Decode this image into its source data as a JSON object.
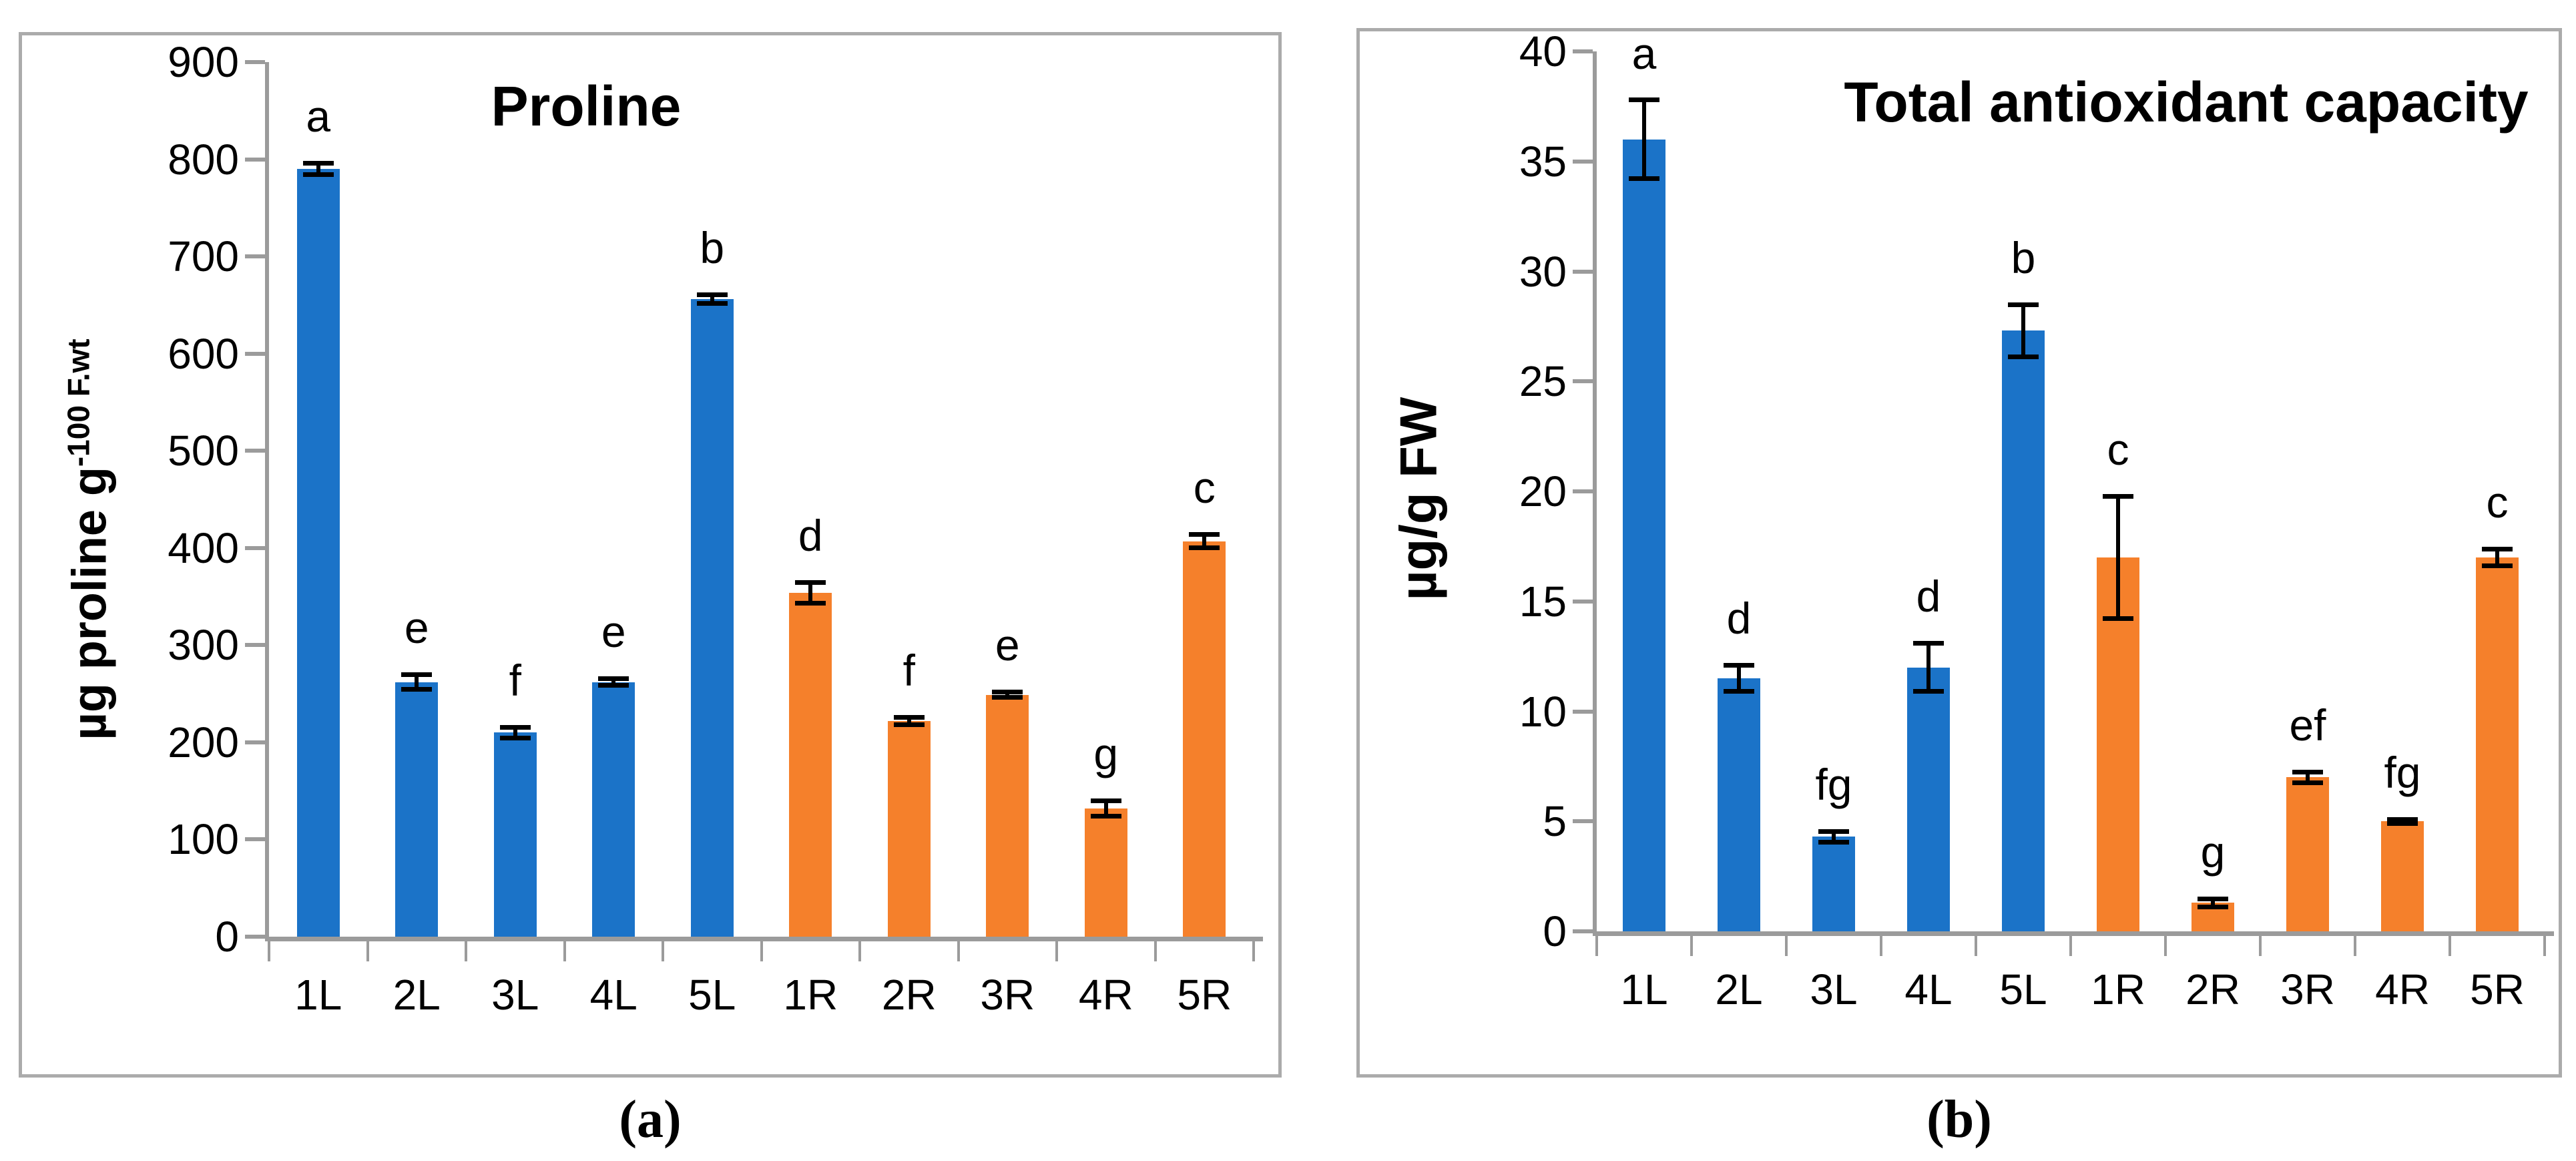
{
  "figure": {
    "captions": [
      "(a)",
      "(b)"
    ]
  },
  "colors": {
    "bar_blue": "#1B73C8",
    "bar_orange": "#F5802B",
    "axis_gray": "#9B9B9B",
    "panel_border": "#ABABAB",
    "error_bar": "#000000"
  },
  "chart_data": [
    {
      "type": "bar",
      "title": "Proline",
      "ylabel": "µg proline g",
      "ylabel_superscript": "-100 F.wt",
      "xlabel": "",
      "ylim": [
        0,
        900
      ],
      "ytick_step": 100,
      "grid": false,
      "legend": "none",
      "categories": [
        "1L",
        "2L",
        "3L",
        "4L",
        "5L",
        "1R",
        "2R",
        "3R",
        "4R",
        "5R"
      ],
      "values": [
        790,
        262,
        210,
        262,
        656,
        354,
        222,
        249,
        132,
        407
      ],
      "errors": [
        6,
        8,
        6,
        4,
        5,
        11,
        4,
        3,
        8,
        7
      ],
      "sig_letters": [
        "a",
        "e",
        "f",
        "e",
        "b",
        "d",
        "f",
        "e",
        "g",
        "c"
      ],
      "bar_color_keys": [
        "bar_blue",
        "bar_blue",
        "bar_blue",
        "bar_blue",
        "bar_blue",
        "bar_orange",
        "bar_orange",
        "bar_orange",
        "bar_orange",
        "bar_orange"
      ]
    },
    {
      "type": "bar",
      "title": "Total antioxidant capacity",
      "ylabel": "µg/g FW",
      "ylabel_superscript": "",
      "xlabel": "",
      "ylim": [
        0,
        40
      ],
      "ytick_step": 5,
      "grid": false,
      "legend": "none",
      "categories": [
        "1L",
        "2L",
        "3L",
        "4L",
        "5L",
        "1R",
        "2R",
        "3R",
        "4R",
        "5R"
      ],
      "values": [
        36,
        11.5,
        4.3,
        12,
        27.3,
        17,
        1.3,
        7,
        5,
        17
      ],
      "errors": [
        1.8,
        0.6,
        0.25,
        1.1,
        1.2,
        2.8,
        0.2,
        0.25,
        0.1,
        0.4
      ],
      "sig_letters": [
        "a",
        "d",
        "fg",
        "d",
        "b",
        "c",
        "g",
        "ef",
        "fg",
        "c"
      ],
      "bar_color_keys": [
        "bar_blue",
        "bar_blue",
        "bar_blue",
        "bar_blue",
        "bar_blue",
        "bar_orange",
        "bar_orange",
        "bar_orange",
        "bar_orange",
        "bar_orange"
      ]
    }
  ]
}
